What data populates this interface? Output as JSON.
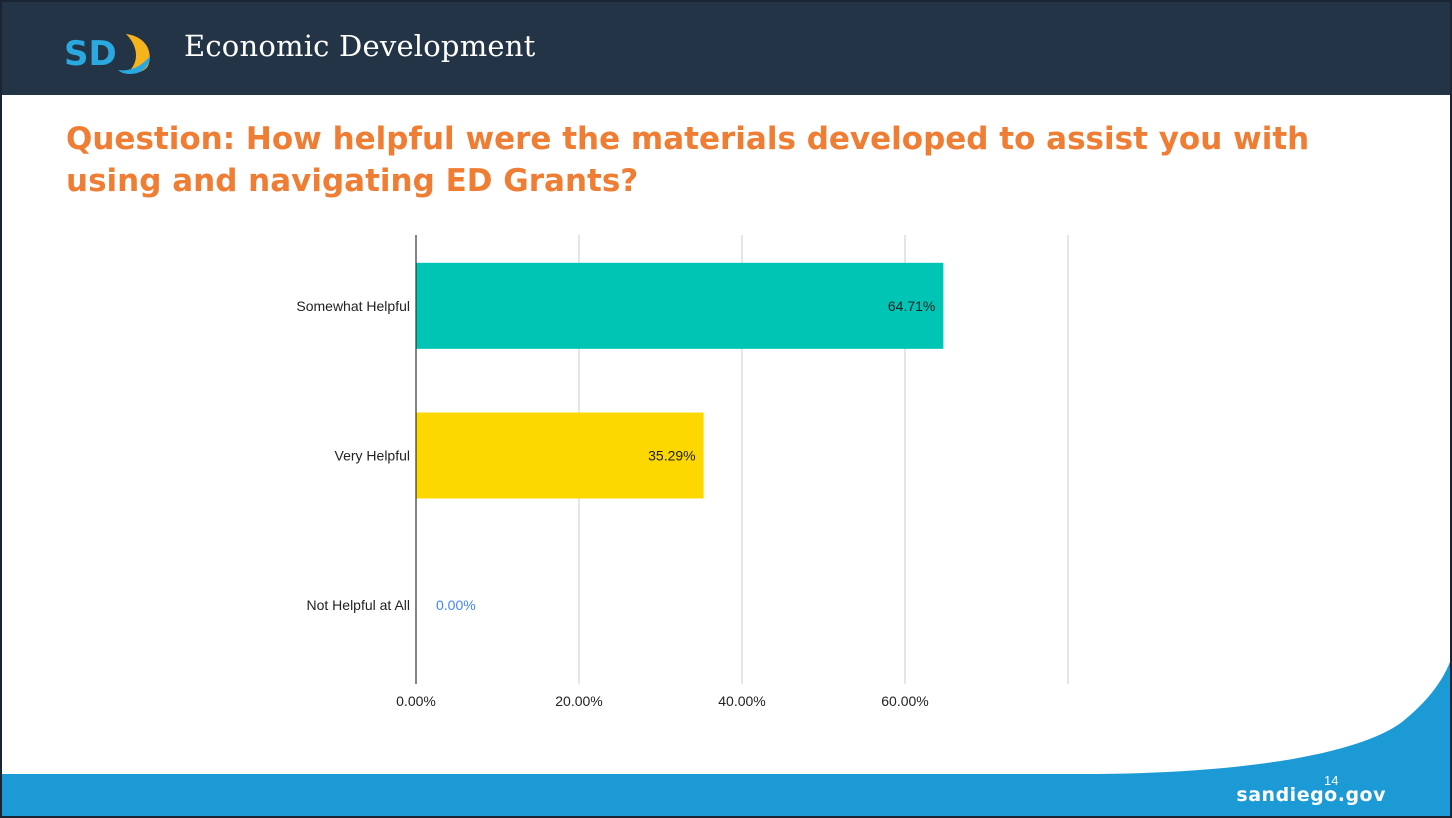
{
  "header": {
    "logo_text": "SD",
    "title": "Economic Development"
  },
  "question": "Question: How helpful were the materials developed to assist you with using and navigating ED Grants?",
  "chart_data": {
    "type": "bar",
    "orientation": "horizontal",
    "categories": [
      "Somewhat Helpful",
      "Very Helpful",
      "Not Helpful at All"
    ],
    "values": [
      64.71,
      35.29,
      0.0
    ],
    "data_labels": [
      "64.71%",
      "35.29%",
      "0.00%"
    ],
    "bar_colors": [
      "#00c5b4",
      "#fcd800",
      "#4285f4"
    ],
    "xlim": [
      0,
      80
    ],
    "xticks": [
      0,
      20,
      40,
      60
    ],
    "xtick_labels": [
      "0.00%",
      "20.00%",
      "40.00%",
      "60.00%"
    ],
    "grid": true,
    "title": "",
    "xlabel": "",
    "ylabel": ""
  },
  "footer": {
    "brand": "sandiego.gov",
    "page_number": "14"
  },
  "colors": {
    "header_bg": "#243447",
    "question_text": "#ef7d33",
    "footer_blue": "#1b9ad6",
    "logo_yellow": "#f6b31b",
    "logo_blue": "#2aa8e0"
  }
}
